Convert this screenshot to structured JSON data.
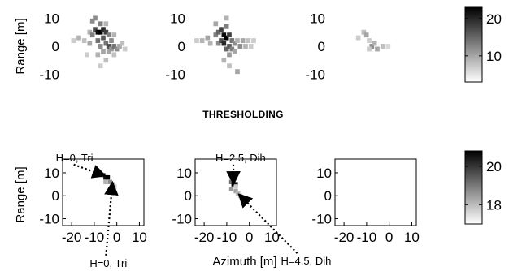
{
  "chart_data": {
    "type": "heatmap",
    "section_title": "THRESHOLDING",
    "xlabel": "Azimuth [m]",
    "ylabel": "Range [m]",
    "colors": {
      "low": "#ffffff",
      "high": "#000000",
      "axis": "#000000"
    },
    "rows": [
      {
        "ylim": [
          -13,
          13
        ],
        "yticks": [
          "10",
          "0",
          "-10"
        ],
        "ytick_values": [
          10,
          0,
          -10
        ],
        "show_xticks": false,
        "colorbar": {
          "range": [
            3,
            23
          ],
          "ticks": [
            "20",
            "10"
          ],
          "tick_values": [
            20,
            10
          ]
        },
        "panels": [
          {
            "name": "top-left",
            "cell_size": 1.7,
            "cells": [
              [
                -12,
                2,
                0.2
              ],
              [
                -10,
                3,
                0.3
              ],
              [
                -8,
                2,
                0.25
              ],
              [
                -6,
                1,
                0.35
              ],
              [
                -6,
                5,
                0.3
              ],
              [
                -5,
                9,
                0.45
              ],
              [
                -5,
                4,
                0.5
              ],
              [
                -4,
                6,
                0.7
              ],
              [
                -4,
                10,
                0.45
              ],
              [
                -3,
                5,
                0.95
              ],
              [
                -3,
                2,
                0.55
              ],
              [
                -2,
                5,
                1
              ],
              [
                -2,
                8,
                0.5
              ],
              [
                -2,
                0,
                0.45
              ],
              [
                -1,
                6,
                0.85
              ],
              [
                -1,
                3,
                0.65
              ],
              [
                -1,
                -2,
                0.35
              ],
              [
                0,
                5,
                0.75
              ],
              [
                0,
                1,
                0.55
              ],
              [
                0,
                8,
                0.3
              ],
              [
                1,
                4,
                0.5
              ],
              [
                1,
                0,
                0.7
              ],
              [
                1,
                -2,
                0.35
              ],
              [
                2,
                2,
                0.45
              ],
              [
                2,
                -1,
                0.4
              ],
              [
                3,
                0,
                0.55
              ],
              [
                3,
                4,
                0.3
              ],
              [
                4,
                -1,
                0.45
              ],
              [
                5,
                0,
                0.35
              ],
              [
                6,
                1,
                0.25
              ],
              [
                7,
                -1,
                0.2
              ],
              [
                -7,
                -3,
                0.2
              ],
              [
                -3,
                -3,
                0.3
              ],
              [
                0,
                -5,
                0.25
              ],
              [
                -2,
                -7,
                0.2
              ],
              [
                3,
                -3,
                0.25
              ]
            ]
          },
          {
            "name": "top-middle",
            "cell_size": 1.7,
            "cells": [
              [
                -13,
                2,
                0.2
              ],
              [
                -11,
                2,
                0.3
              ],
              [
                -9,
                3,
                0.35
              ],
              [
                -8,
                1,
                0.3
              ],
              [
                -6,
                4,
                0.5
              ],
              [
                -6,
                8,
                0.35
              ],
              [
                -5,
                5,
                0.6
              ],
              [
                -5,
                1,
                0.45
              ],
              [
                -4,
                6,
                0.75
              ],
              [
                -4,
                2,
                0.7
              ],
              [
                -3,
                4,
                0.95
              ],
              [
                -3,
                1,
                0.85
              ],
              [
                -2,
                3,
                1
              ],
              [
                -2,
                7,
                0.5
              ],
              [
                -2,
                -1,
                0.6
              ],
              [
                -1,
                4,
                0.75
              ],
              [
                -1,
                0,
                0.65
              ],
              [
                -1,
                -3,
                0.4
              ],
              [
                0,
                2,
                0.55
              ],
              [
                0,
                -1,
                0.5
              ],
              [
                1,
                1,
                0.45
              ],
              [
                1,
                -2,
                0.35
              ],
              [
                2,
                2,
                0.3
              ],
              [
                3,
                0,
                0.45
              ],
              [
                4,
                2,
                0.35
              ],
              [
                5,
                0,
                0.3
              ],
              [
                6,
                2,
                0.25
              ],
              [
                7,
                0,
                0.2
              ],
              [
                8,
                2,
                0.2
              ],
              [
                -3,
                -5,
                0.3
              ],
              [
                -1,
                -7,
                0.25
              ],
              [
                -2,
                10,
                0.3
              ],
              [
                2,
                -9,
                0.35
              ]
            ]
          },
          {
            "name": "top-right",
            "cell_size": 1.7,
            "cells": [
              [
                -5,
                3,
                0.2
              ],
              [
                -3,
                5,
                0.25
              ],
              [
                -2,
                4,
                0.35
              ],
              [
                -1,
                2,
                0.2
              ],
              [
                0,
                0,
                0.45
              ],
              [
                1,
                1,
                0.3
              ],
              [
                2,
                -1,
                0.35
              ],
              [
                -1,
                -1,
                0.2
              ],
              [
                4,
                0,
                0.25
              ],
              [
                6,
                0,
                0.15
              ]
            ]
          }
        ]
      },
      {
        "ylim": [
          -13,
          16
        ],
        "yticks": [
          "10",
          "0",
          "-10"
        ],
        "ytick_values": [
          10,
          0,
          -10
        ],
        "show_xticks": true,
        "xlim": [
          -24,
          12
        ],
        "xticks": [
          "-20",
          "-10",
          "0",
          "10"
        ],
        "xtick_values": [
          -20,
          -10,
          0,
          10
        ],
        "colorbar": {
          "range": [
            17,
            20.8
          ],
          "ticks": [
            "20",
            "18"
          ],
          "tick_values": [
            20,
            18
          ]
        },
        "panels": [
          {
            "name": "bottom-left",
            "cell_size": 1.9,
            "cells": [
              [
                -8,
                10,
                0.4
              ],
              [
                -6,
                9,
                0.6
              ],
              [
                -5,
                8,
                0.95
              ],
              [
                -4,
                8,
                1
              ],
              [
                -5,
                6,
                0.3
              ],
              [
                -3,
                6,
                0.45
              ],
              [
                -2,
                5,
                0.35
              ],
              [
                -1,
                4,
                0.2
              ],
              [
                -3,
                3,
                0.15
              ]
            ]
          },
          {
            "name": "bottom-middle",
            "cell_size": 1.9,
            "cells": [
              [
                -8,
                6,
                0.55
              ],
              [
                -7,
                5,
                1
              ],
              [
                -6,
                5,
                0.9
              ],
              [
                -8,
                3,
                0.4
              ],
              [
                -6,
                2,
                0.35
              ],
              [
                -5,
                1,
                0.3
              ],
              [
                -4,
                0,
                0.25
              ],
              [
                -6,
                4,
                0.2
              ]
            ]
          },
          {
            "name": "bottom-right",
            "cell_size": 1.9,
            "cells": []
          }
        ]
      }
    ],
    "annotations": [
      {
        "label": "H=0, Tri",
        "text_x": -27,
        "text_y": 15,
        "target_x": -6,
        "target_y": 9
      },
      {
        "label": "H=0, Tri",
        "text_x": -12,
        "text_y": -31,
        "target_x": -2,
        "target_y": 5
      },
      {
        "label": "H=2.5, Dih",
        "text_x": -15,
        "text_y": 15,
        "target_x": -7,
        "target_y": 6
      },
      {
        "label": "H=4.5, Dih",
        "text_x": 14,
        "text_y": -30,
        "target_x": -4,
        "target_y": 0
      }
    ]
  }
}
